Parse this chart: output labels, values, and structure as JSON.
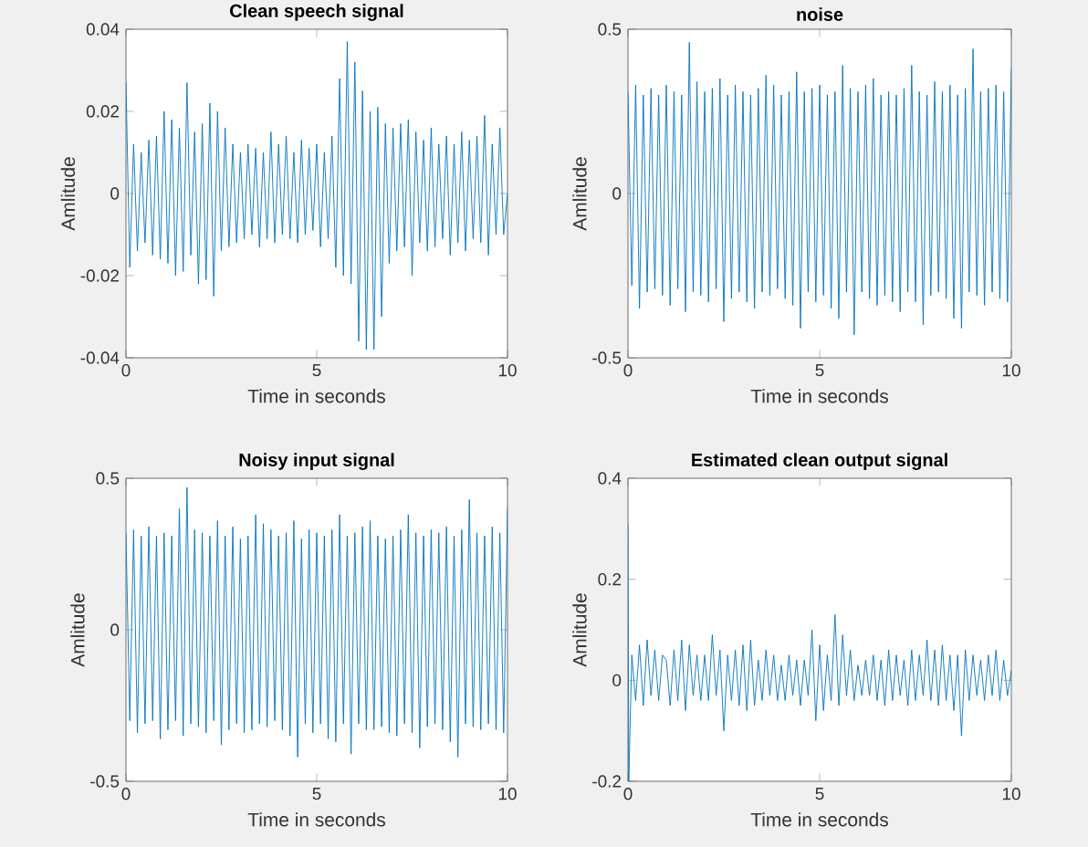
{
  "chart_data": [
    {
      "type": "line",
      "title": "Clean speech signal",
      "xlabel": "Time in seconds",
      "ylabel": "Amlitude",
      "xlim": [
        0,
        10
      ],
      "ylim": [
        -0.04,
        0.04
      ],
      "xticks": [
        0,
        5,
        10
      ],
      "yticks": [
        -0.04,
        -0.02,
        0,
        0.02,
        0.04
      ],
      "x": [
        0,
        0.1,
        0.2,
        0.3,
        0.4,
        0.5,
        0.6,
        0.7,
        0.8,
        0.9,
        1,
        1.1,
        1.2,
        1.3,
        1.4,
        1.5,
        1.6,
        1.7,
        1.8,
        1.9,
        2,
        2.1,
        2.2,
        2.3,
        2.4,
        2.5,
        2.6,
        2.7,
        2.8,
        2.9,
        3,
        3.1,
        3.2,
        3.3,
        3.4,
        3.5,
        3.6,
        3.7,
        3.8,
        3.9,
        4,
        4.1,
        4.2,
        4.3,
        4.4,
        4.5,
        4.6,
        4.7,
        4.8,
        4.9,
        5,
        5.1,
        5.2,
        5.3,
        5.4,
        5.5,
        5.6,
        5.7,
        5.8,
        5.9,
        6,
        6.1,
        6.2,
        6.3,
        6.4,
        6.5,
        6.6,
        6.7,
        6.8,
        6.9,
        7,
        7.1,
        7.2,
        7.3,
        7.4,
        7.5,
        7.6,
        7.7,
        7.8,
        7.9,
        8,
        8.1,
        8.2,
        8.3,
        8.4,
        8.5,
        8.6,
        8.7,
        8.8,
        8.9,
        9,
        9.1,
        9.2,
        9.3,
        9.4,
        9.5,
        9.6,
        9.7,
        9.8,
        9.9,
        10
      ],
      "series": [
        {
          "color": "#0072bd",
          "values": [
            0.027,
            -0.018,
            0.012,
            -0.014,
            0.01,
            -0.012,
            0.013,
            -0.015,
            0.014,
            -0.016,
            0.02,
            -0.017,
            0.018,
            -0.02,
            0.016,
            -0.019,
            0.027,
            -0.015,
            0.015,
            -0.022,
            0.017,
            -0.021,
            0.022,
            -0.025,
            0.02,
            -0.014,
            0.016,
            -0.013,
            0.012,
            -0.012,
            0.01,
            -0.011,
            0.012,
            -0.01,
            0.011,
            -0.013,
            0.01,
            -0.011,
            0.015,
            -0.012,
            0.012,
            -0.01,
            0.014,
            -0.011,
            0.01,
            -0.012,
            0.013,
            -0.01,
            0.011,
            -0.009,
            0.012,
            -0.013,
            0.01,
            -0.011,
            0.014,
            -0.018,
            0.028,
            -0.02,
            0.037,
            -0.022,
            0.032,
            -0.036,
            0.025,
            -0.038,
            0.02,
            -0.038,
            0.021,
            -0.03,
            0.017,
            -0.017,
            0.016,
            -0.014,
            0.017,
            -0.013,
            0.018,
            -0.02,
            0.015,
            -0.012,
            0.013,
            -0.014,
            0.016,
            -0.013,
            0.012,
            -0.011,
            0.014,
            -0.015,
            0.012,
            -0.012,
            0.015,
            -0.014,
            0.013,
            -0.011,
            0.014,
            -0.012,
            0.019,
            -0.015,
            0.012,
            -0.01,
            0.016,
            -0.01,
            0.0
          ]
        }
      ]
    },
    {
      "type": "line",
      "title": "noise",
      "xlabel": "Time in seconds",
      "ylabel": "Amlitude",
      "xlim": [
        0,
        10
      ],
      "ylim": [
        -0.5,
        0.5
      ],
      "xticks": [
        0,
        5,
        10
      ],
      "yticks": [
        -0.5,
        0,
        0.5
      ],
      "x": [
        0,
        0.1,
        0.2,
        0.3,
        0.4,
        0.5,
        0.6,
        0.7,
        0.8,
        0.9,
        1,
        1.1,
        1.2,
        1.3,
        1.4,
        1.5,
        1.6,
        1.7,
        1.8,
        1.9,
        2,
        2.1,
        2.2,
        2.3,
        2.4,
        2.5,
        2.6,
        2.7,
        2.8,
        2.9,
        3,
        3.1,
        3.2,
        3.3,
        3.4,
        3.5,
        3.6,
        3.7,
        3.8,
        3.9,
        4,
        4.1,
        4.2,
        4.3,
        4.4,
        4.5,
        4.6,
        4.7,
        4.8,
        4.9,
        5,
        5.1,
        5.2,
        5.3,
        5.4,
        5.5,
        5.6,
        5.7,
        5.8,
        5.9,
        6,
        6.1,
        6.2,
        6.3,
        6.4,
        6.5,
        6.6,
        6.7,
        6.8,
        6.9,
        7,
        7.1,
        7.2,
        7.3,
        7.4,
        7.5,
        7.6,
        7.7,
        7.8,
        7.9,
        8,
        8.1,
        8.2,
        8.3,
        8.4,
        8.5,
        8.6,
        8.7,
        8.8,
        8.9,
        9,
        9.1,
        9.2,
        9.3,
        9.4,
        9.5,
        9.6,
        9.7,
        9.8,
        9.9,
        10
      ],
      "series": [
        {
          "color": "#0072bd",
          "values": [
            0.31,
            -0.28,
            0.33,
            -0.35,
            0.3,
            -0.3,
            0.32,
            -0.29,
            0.3,
            -0.31,
            0.33,
            -0.34,
            0.31,
            -0.29,
            0.3,
            -0.36,
            0.46,
            -0.3,
            0.34,
            -0.31,
            0.31,
            -0.33,
            0.32,
            -0.29,
            0.35,
            -0.39,
            0.3,
            -0.32,
            0.33,
            -0.3,
            0.31,
            -0.33,
            0.3,
            -0.35,
            0.32,
            -0.3,
            0.36,
            -0.31,
            0.33,
            -0.29,
            0.3,
            -0.32,
            0.31,
            -0.34,
            0.37,
            -0.41,
            0.31,
            -0.3,
            0.32,
            -0.33,
            0.33,
            -0.31,
            0.3,
            -0.35,
            0.31,
            -0.38,
            0.39,
            -0.3,
            0.32,
            -0.43,
            0.31,
            -0.3,
            0.33,
            -0.32,
            0.35,
            -0.34,
            0.3,
            -0.31,
            0.31,
            -0.33,
            0.3,
            -0.36,
            0.32,
            -0.3,
            0.39,
            -0.33,
            0.31,
            -0.4,
            0.3,
            -0.31,
            0.34,
            -0.3,
            0.31,
            -0.32,
            0.33,
            -0.38,
            0.3,
            -0.41,
            0.32,
            -0.3,
            0.44,
            -0.31,
            0.31,
            -0.34,
            0.32,
            -0.3,
            0.33,
            -0.32,
            0.31,
            -0.33,
            0.38
          ]
        }
      ]
    },
    {
      "type": "line",
      "title": "Noisy input signal",
      "xlabel": "Time in seconds",
      "ylabel": "Amlitude",
      "xlim": [
        0,
        10
      ],
      "ylim": [
        -0.5,
        0.5
      ],
      "xticks": [
        0,
        5,
        10
      ],
      "yticks": [
        -0.5,
        0,
        0.5
      ],
      "x": [
        0,
        0.1,
        0.2,
        0.3,
        0.4,
        0.5,
        0.6,
        0.7,
        0.8,
        0.9,
        1,
        1.1,
        1.2,
        1.3,
        1.4,
        1.5,
        1.6,
        1.7,
        1.8,
        1.9,
        2,
        2.1,
        2.2,
        2.3,
        2.4,
        2.5,
        2.6,
        2.7,
        2.8,
        2.9,
        3,
        3.1,
        3.2,
        3.3,
        3.4,
        3.5,
        3.6,
        3.7,
        3.8,
        3.9,
        4,
        4.1,
        4.2,
        4.3,
        4.4,
        4.5,
        4.6,
        4.7,
        4.8,
        4.9,
        5,
        5.1,
        5.2,
        5.3,
        5.4,
        5.5,
        5.6,
        5.7,
        5.8,
        5.9,
        6,
        6.1,
        6.2,
        6.3,
        6.4,
        6.5,
        6.6,
        6.7,
        6.8,
        6.9,
        7,
        7.1,
        7.2,
        7.3,
        7.4,
        7.5,
        7.6,
        7.7,
        7.8,
        7.9,
        8,
        8.1,
        8.2,
        8.3,
        8.4,
        8.5,
        8.6,
        8.7,
        8.8,
        8.9,
        9,
        9.1,
        9.2,
        9.3,
        9.4,
        9.5,
        9.6,
        9.7,
        9.8,
        9.9,
        10
      ],
      "series": [
        {
          "color": "#0072bd",
          "values": [
            0.32,
            -0.3,
            0.33,
            -0.34,
            0.31,
            -0.31,
            0.34,
            -0.3,
            0.31,
            -0.36,
            0.32,
            -0.33,
            0.31,
            -0.3,
            0.4,
            -0.35,
            0.47,
            -0.31,
            0.33,
            -0.32,
            0.32,
            -0.34,
            0.31,
            -0.3,
            0.36,
            -0.38,
            0.31,
            -0.33,
            0.34,
            -0.31,
            0.3,
            -0.34,
            0.31,
            -0.33,
            0.38,
            -0.31,
            0.35,
            -0.32,
            0.33,
            -0.3,
            0.31,
            -0.33,
            0.32,
            -0.35,
            0.36,
            -0.42,
            0.3,
            -0.31,
            0.33,
            -0.34,
            0.32,
            -0.31,
            0.31,
            -0.36,
            0.33,
            -0.37,
            0.38,
            -0.31,
            0.31,
            -0.41,
            0.32,
            -0.31,
            0.34,
            -0.33,
            0.36,
            -0.33,
            0.31,
            -0.32,
            0.3,
            -0.34,
            0.31,
            -0.35,
            0.33,
            -0.31,
            0.38,
            -0.34,
            0.32,
            -0.39,
            0.31,
            -0.32,
            0.33,
            -0.31,
            0.32,
            -0.33,
            0.34,
            -0.37,
            0.31,
            -0.42,
            0.33,
            -0.31,
            0.43,
            -0.32,
            0.32,
            -0.33,
            0.31,
            -0.31,
            0.34,
            -0.33,
            0.32,
            -0.34,
            0.4
          ]
        }
      ]
    },
    {
      "type": "line",
      "title": "Estimated clean output signal",
      "xlabel": "Time in seconds",
      "ylabel": "Amlitude",
      "xlim": [
        0,
        10
      ],
      "ylim": [
        -0.2,
        0.4
      ],
      "xticks": [
        0,
        5,
        10
      ],
      "yticks": [
        -0.2,
        0,
        0.2,
        0.4
      ],
      "x": [
        0,
        0.02,
        0.1,
        0.2,
        0.3,
        0.4,
        0.5,
        0.6,
        0.7,
        0.8,
        0.9,
        1,
        1.1,
        1.2,
        1.3,
        1.4,
        1.5,
        1.6,
        1.7,
        1.8,
        1.9,
        2,
        2.1,
        2.2,
        2.3,
        2.4,
        2.5,
        2.6,
        2.7,
        2.8,
        2.9,
        3,
        3.1,
        3.2,
        3.3,
        3.4,
        3.5,
        3.6,
        3.7,
        3.8,
        3.9,
        4,
        4.1,
        4.2,
        4.3,
        4.4,
        4.5,
        4.6,
        4.7,
        4.8,
        4.9,
        5,
        5.1,
        5.2,
        5.3,
        5.4,
        5.5,
        5.6,
        5.7,
        5.8,
        5.9,
        6,
        6.1,
        6.2,
        6.3,
        6.4,
        6.5,
        6.6,
        6.7,
        6.8,
        6.9,
        7,
        7.1,
        7.2,
        7.3,
        7.4,
        7.5,
        7.6,
        7.7,
        7.8,
        7.9,
        8,
        8.1,
        8.2,
        8.3,
        8.4,
        8.5,
        8.6,
        8.7,
        8.8,
        8.9,
        9,
        9.1,
        9.2,
        9.3,
        9.4,
        9.5,
        9.6,
        9.7,
        9.8,
        9.9,
        10
      ],
      "series": [
        {
          "color": "#0072bd",
          "values": [
            0.31,
            -0.2,
            0.05,
            -0.04,
            0.07,
            -0.05,
            0.08,
            -0.03,
            0.06,
            -0.04,
            0.05,
            0.04,
            -0.05,
            0.06,
            -0.04,
            0.08,
            -0.06,
            0.07,
            -0.03,
            0.05,
            -0.04,
            0.05,
            -0.04,
            0.09,
            -0.03,
            0.06,
            -0.1,
            0.05,
            -0.04,
            0.06,
            -0.05,
            0.07,
            -0.06,
            0.08,
            -0.05,
            0.04,
            -0.04,
            0.06,
            -0.03,
            0.05,
            -0.04,
            0.03,
            -0.04,
            0.05,
            -0.03,
            0.04,
            -0.05,
            0.04,
            -0.03,
            0.1,
            -0.08,
            0.07,
            -0.06,
            0.05,
            -0.04,
            0.13,
            -0.05,
            0.09,
            -0.03,
            0.06,
            -0.04,
            0.03,
            -0.03,
            0.04,
            -0.03,
            0.05,
            -0.04,
            0.04,
            -0.05,
            0.06,
            -0.04,
            0.05,
            -0.03,
            0.04,
            -0.05,
            0.06,
            -0.04,
            0.05,
            -0.03,
            0.08,
            -0.04,
            0.06,
            -0.05,
            0.07,
            -0.04,
            0.05,
            -0.06,
            0.05,
            -0.11,
            0.06,
            -0.04,
            0.05,
            -0.03,
            0.04,
            -0.04,
            0.05,
            -0.03,
            0.06,
            -0.04,
            0.04,
            -0.03,
            0.02
          ]
        }
      ]
    }
  ]
}
